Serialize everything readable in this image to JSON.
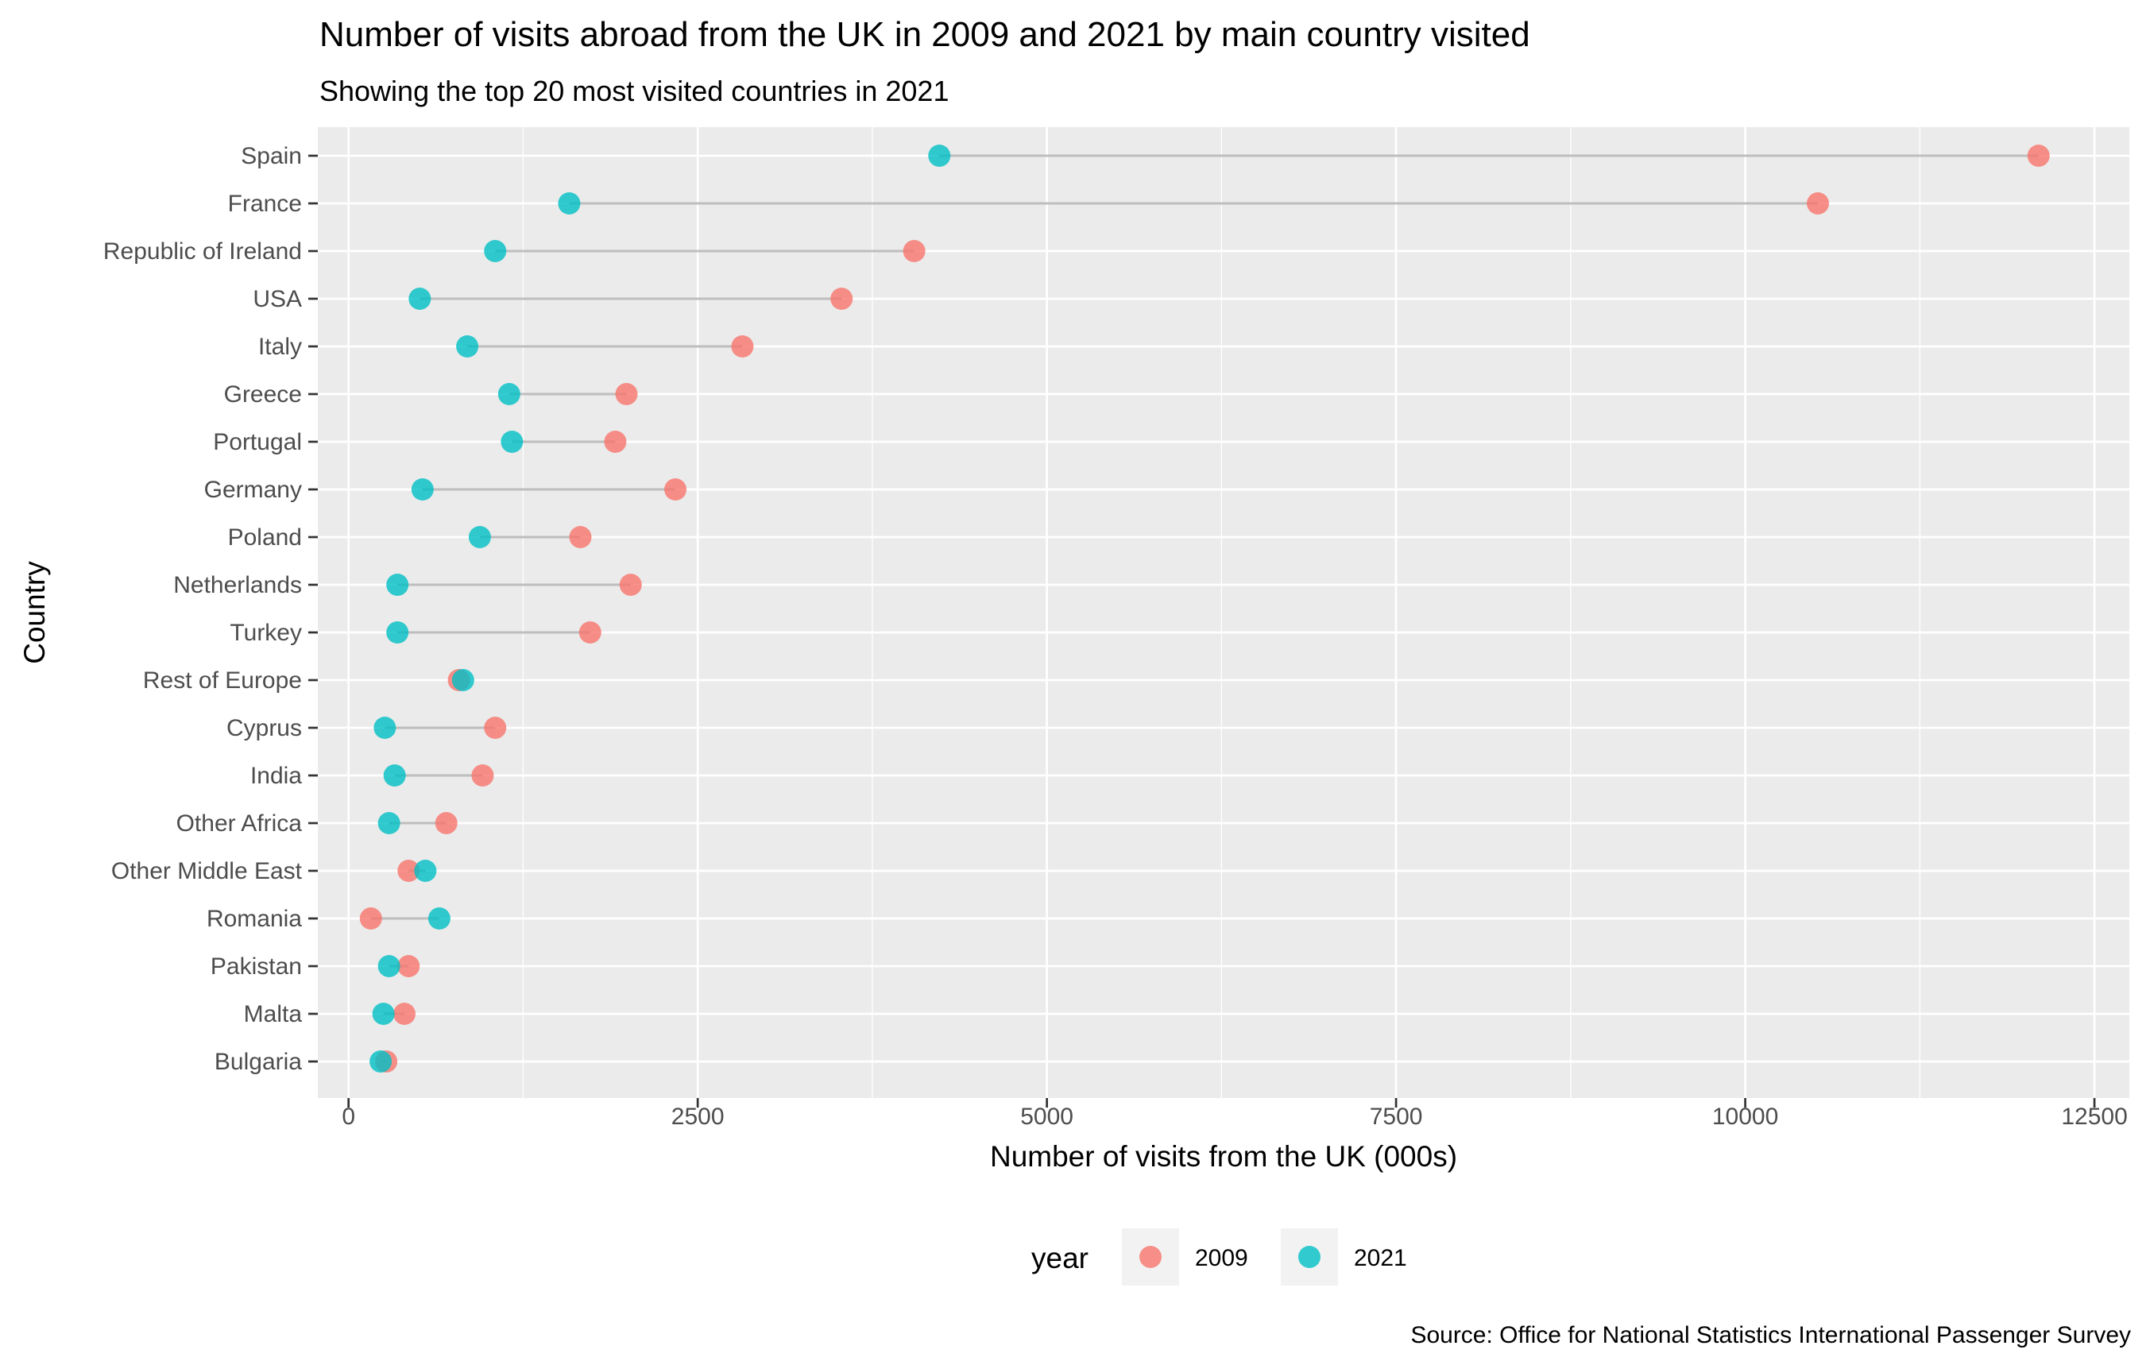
{
  "chart_data": {
    "type": "scatter",
    "title": "Number of visits abroad from the UK in 2009 and 2021 by main country visited",
    "subtitle": "Showing the top 20 most visited countries in 2021",
    "xlabel": "Number of visits from the UK (000s)",
    "ylabel": "Country",
    "caption": "Source: Office for National Statistics International Passenger Survey",
    "xlim": [
      -220,
      12750
    ],
    "x_ticks": [
      0,
      2500,
      5000,
      7500,
      10000,
      12500
    ],
    "x_tick_labels": [
      "0",
      "2500",
      "5000",
      "7500",
      "10000",
      "12500"
    ],
    "grid": true,
    "legend": {
      "title": "year",
      "position": "bottom"
    },
    "categories": [
      "Spain",
      "France",
      "Republic of Ireland",
      "USA",
      "Italy",
      "Greece",
      "Portugal",
      "Germany",
      "Poland",
      "Netherlands",
      "Turkey",
      "Rest of Europe",
      "Cyprus",
      "India",
      "Other Africa",
      "Other Middle East",
      "Romania",
      "Pakistan",
      "Malta",
      "Bulgaria"
    ],
    "series": [
      {
        "name": "2009",
        "color": "#F8766D",
        "values": [
          12100,
          10520,
          4050,
          3530,
          2820,
          1990,
          1910,
          2340,
          1660,
          2020,
          1730,
          790,
          1050,
          960,
          700,
          430,
          160,
          430,
          400,
          270
        ]
      },
      {
        "name": "2021",
        "color": "#00BFC4",
        "values": [
          4230,
          1580,
          1050,
          510,
          850,
          1150,
          1170,
          530,
          940,
          350,
          350,
          820,
          260,
          330,
          290,
          550,
          650,
          290,
          250,
          230
        ]
      }
    ]
  }
}
